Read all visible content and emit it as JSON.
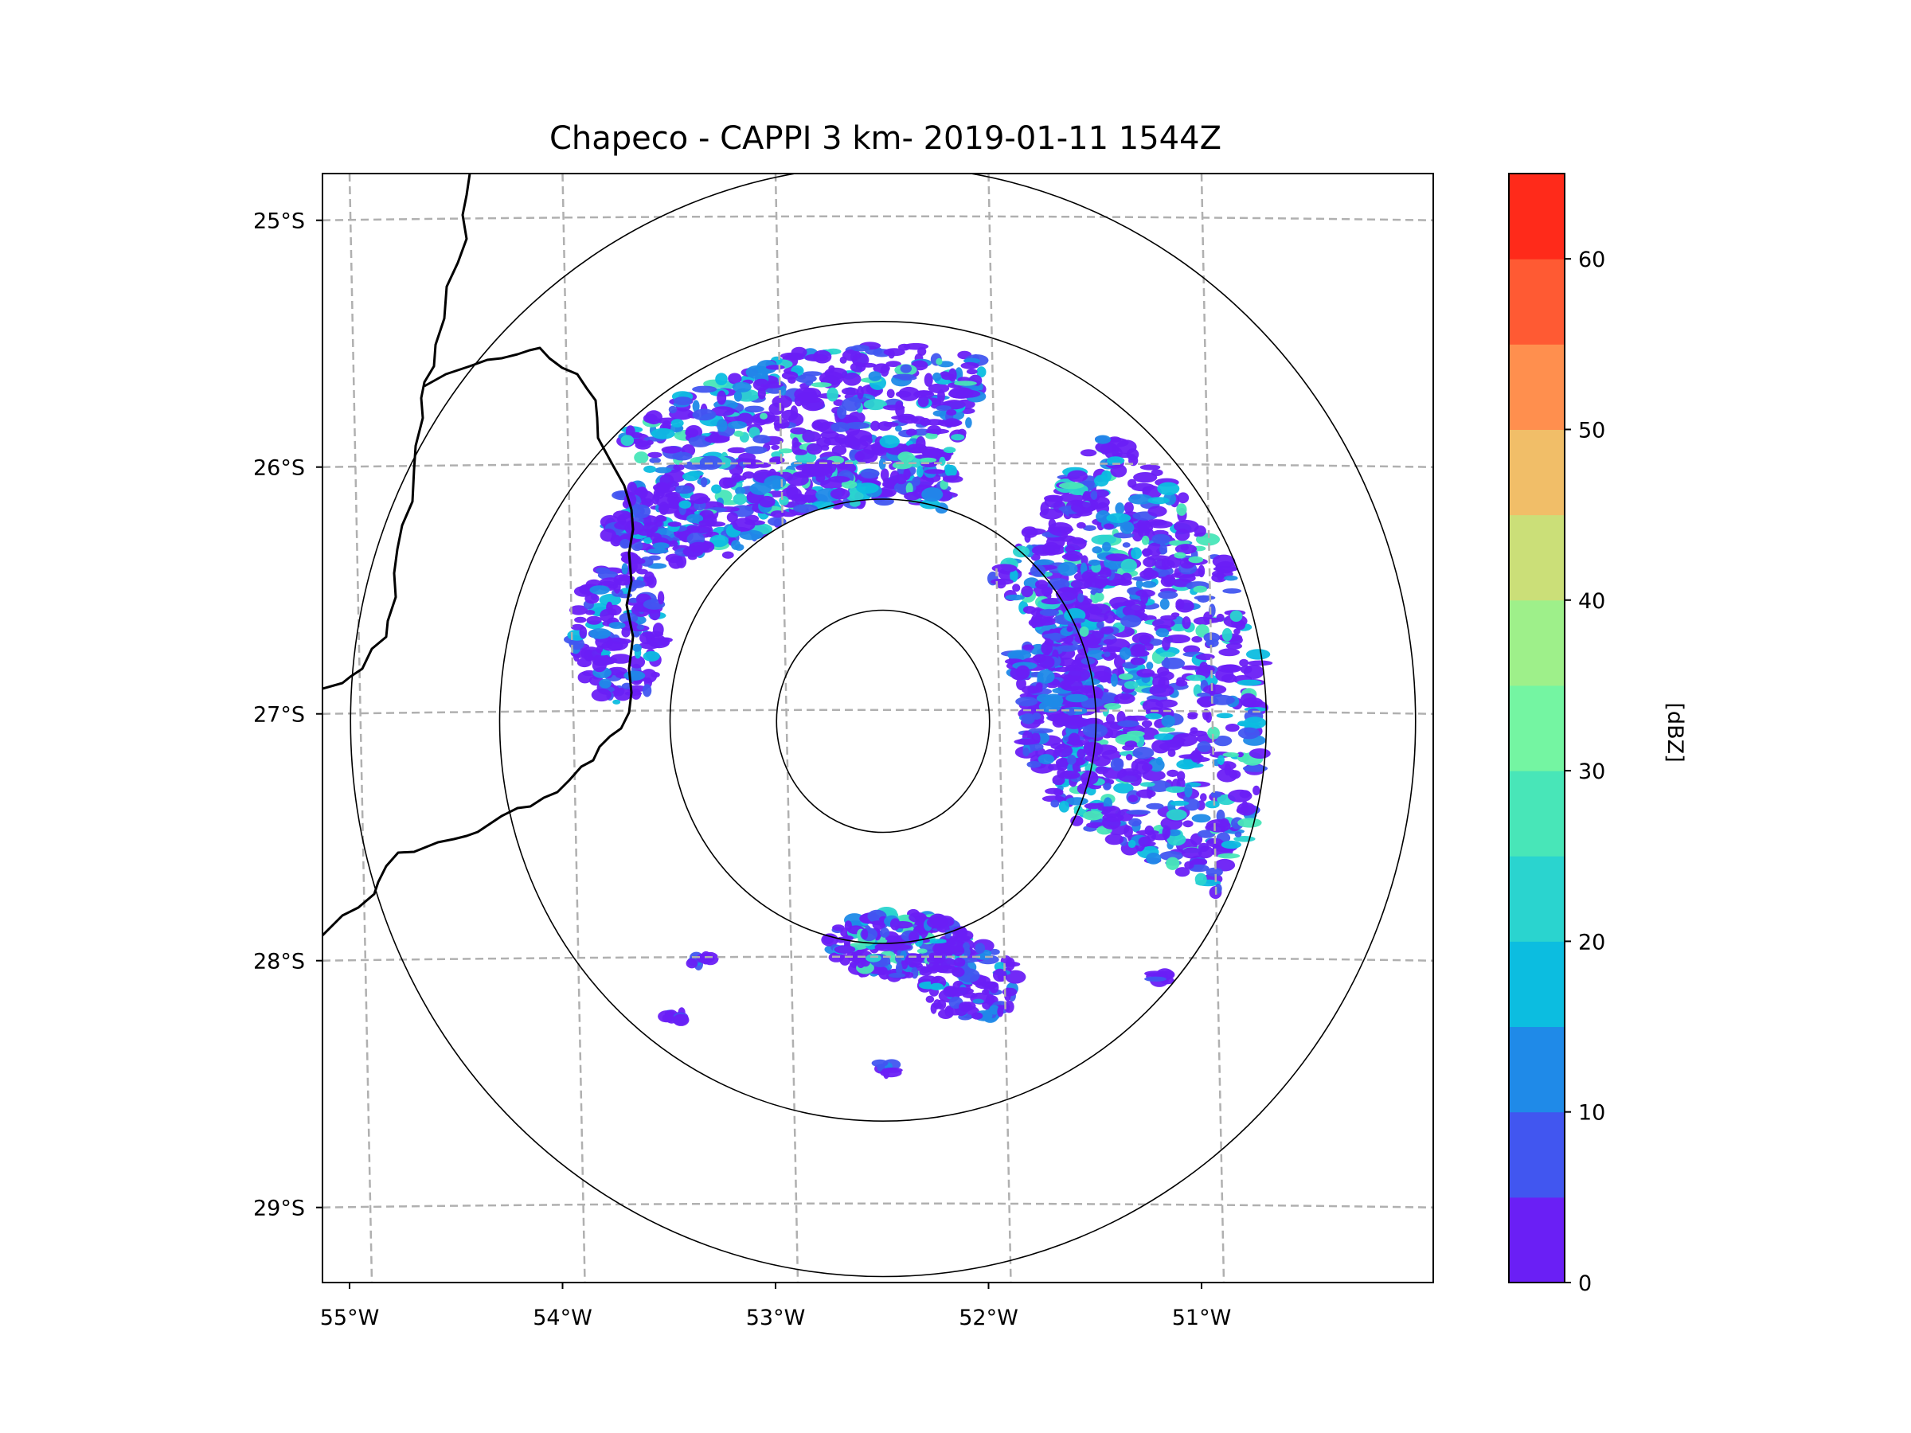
{
  "chart_data": {
    "type": "radar-ppi-map",
    "title": "Chapeco - CAPPI 3 km- 2019-01-11 1544Z",
    "radar": {
      "name": "Chapeco",
      "lon": -52.6,
      "lat": -27.03
    },
    "extent": {
      "lon": [
        -55.2,
        -50.05
      ],
      "lat": [
        -29.28,
        -24.79
      ]
    },
    "x_ticks": [
      {
        "value": -55,
        "label": "55°W"
      },
      {
        "value": -54,
        "label": "54°W"
      },
      {
        "value": -53,
        "label": "53°W"
      },
      {
        "value": -52,
        "label": "52°W"
      },
      {
        "value": -51,
        "label": "51°W"
      }
    ],
    "y_ticks": [
      {
        "value": -25,
        "label": "25°S"
      },
      {
        "value": -26,
        "label": "26°S"
      },
      {
        "value": -27,
        "label": "27°S"
      },
      {
        "value": -28,
        "label": "28°S"
      },
      {
        "value": -29,
        "label": "29°S"
      }
    ],
    "range_rings_deg": [
      0.5,
      1.0,
      1.8,
      2.5
    ],
    "grid": true,
    "colorbar": {
      "label": "[dBZ]",
      "min": 0,
      "max": 65,
      "step": 5,
      "ticks": [
        "0",
        "10",
        "20",
        "30",
        "40",
        "50",
        "60"
      ],
      "colors": [
        "#6a1ff5",
        "#4156f0",
        "#1f8ae8",
        "#0cbde0",
        "#2ad4cf",
        "#48e6b8",
        "#74f5a2",
        "#9ef08a",
        "#cbdf78",
        "#f1be68",
        "#ff8f4e",
        "#ff5a33",
        "#ff2a1a"
      ]
    },
    "echo_clusters": [
      {
        "region": "north arc",
        "lon": -52.75,
        "lat": -25.75,
        "max_dbz": 25
      },
      {
        "region": "east arc",
        "lon": -51.4,
        "lat": -26.6,
        "max_dbz": 25
      },
      {
        "region": "west",
        "lon": -53.8,
        "lat": -26.6,
        "max_dbz": 15
      },
      {
        "region": "south",
        "lon": -52.5,
        "lat": -27.95,
        "max_dbz": 25
      }
    ]
  }
}
